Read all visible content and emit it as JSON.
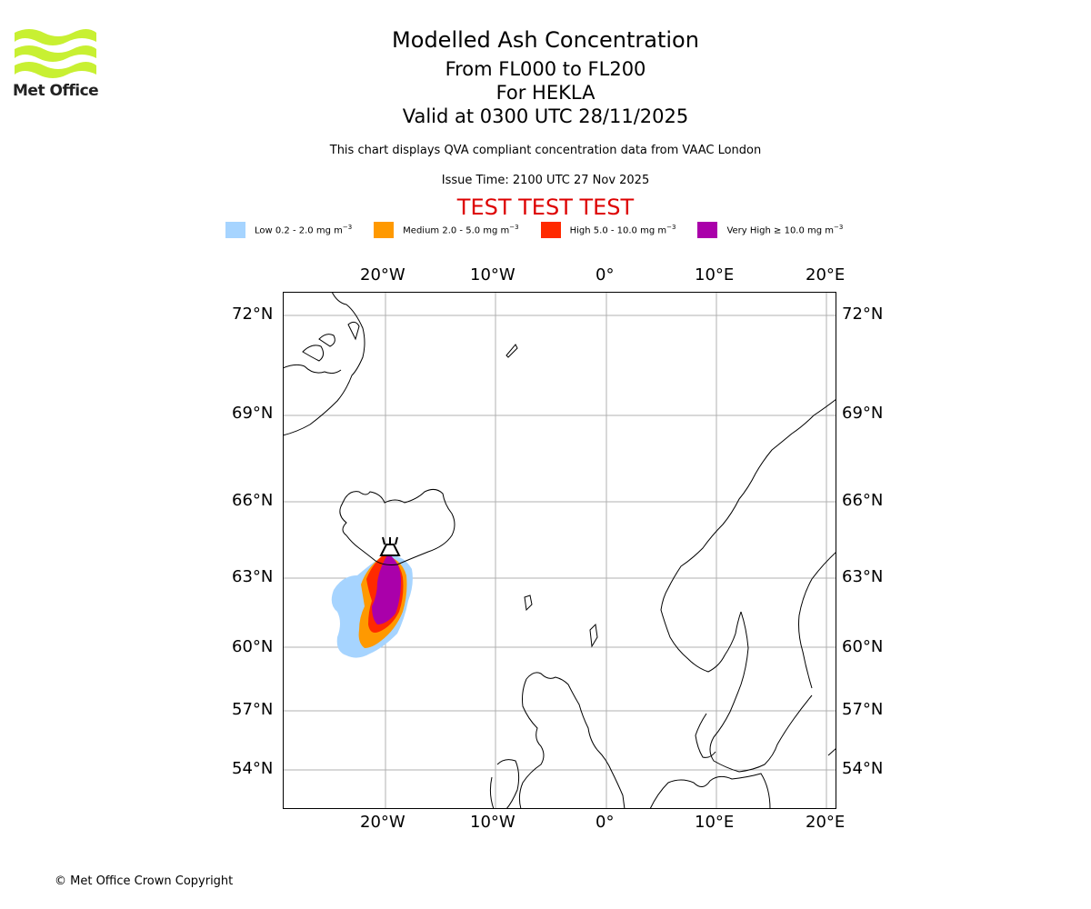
{
  "logo": {
    "text": "Met Office",
    "accent": "#c8f032"
  },
  "header": {
    "title": "Modelled Ash Concentration",
    "levels": "From FL000 to FL200",
    "volcano": "For HEKLA",
    "valid": "Valid at 0300 UTC 28/11/2025",
    "description": "This chart displays QVA compliant concentration data from VAAC London",
    "issue_time": "Issue Time: 2100 UTC 27 Nov 2025",
    "test_banner": "TEST TEST TEST",
    "test_color": "#dd0000"
  },
  "legend": [
    {
      "label": "Low 0.2 - 2.0 mg m",
      "sup": "−3",
      "color": "#a6d4ff"
    },
    {
      "label": "Medium 2.0 - 5.0 mg m",
      "sup": "−3",
      "color": "#ff9900"
    },
    {
      "label": "High 5.0 - 10.0 mg m",
      "sup": "−3",
      "color": "#ff2a00"
    },
    {
      "label": "Very High ≥ 10.0 mg m",
      "sup": "−3",
      "color": "#aa00aa"
    }
  ],
  "map": {
    "lon_ticks": [
      "20°W",
      "10°W",
      "0°",
      "10°E",
      "20°E"
    ],
    "lat_ticks": [
      "72°N",
      "69°N",
      "66°N",
      "63°N",
      "60°N",
      "57°N",
      "54°N"
    ],
    "volcano_icon": "volcano-icon",
    "grid": true
  },
  "footer": {
    "copyright": "© Met Office Crown Copyright"
  }
}
